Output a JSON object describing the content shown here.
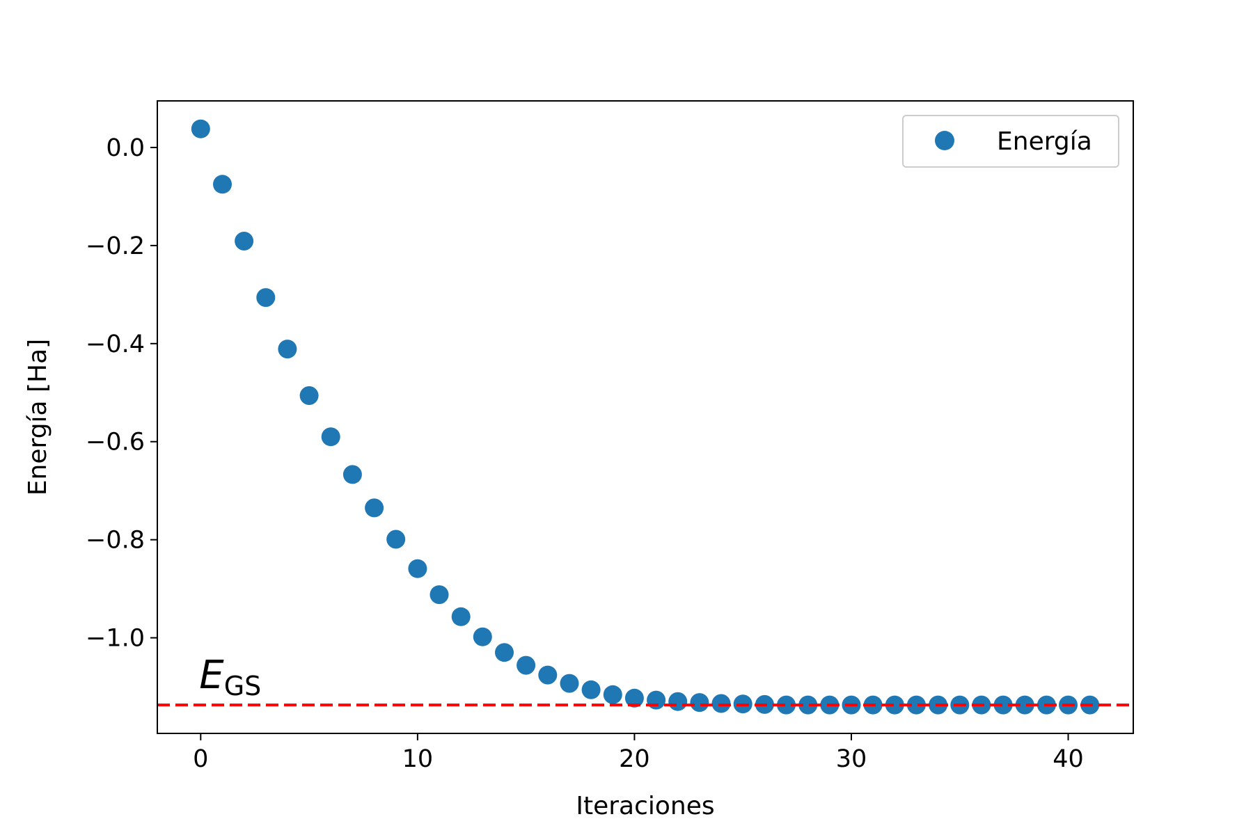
{
  "chart_data": {
    "type": "scatter",
    "xlabel": "Iteraciones",
    "ylabel": "Energía [Ha]",
    "xlim": [
      -2,
      43
    ],
    "ylim": [
      -1.195,
      0.095
    ],
    "xticks": [
      0,
      10,
      20,
      30,
      40
    ],
    "xtick_labels": [
      "0",
      "10",
      "20",
      "30",
      "40"
    ],
    "yticks": [
      0.0,
      -0.2,
      -0.4,
      -0.6,
      -0.8,
      -1.0
    ],
    "ytick_labels": [
      "0.0",
      "−0.2",
      "−0.4",
      "−0.6",
      "−0.8",
      "−1.0"
    ],
    "grid": false,
    "legend_position": "top-right",
    "series": [
      {
        "name": "Energía",
        "color": "#1f77b4",
        "marker": "circle",
        "x": [
          0,
          1,
          2,
          3,
          4,
          5,
          6,
          7,
          8,
          9,
          10,
          11,
          12,
          13,
          14,
          15,
          16,
          17,
          18,
          19,
          20,
          21,
          22,
          23,
          24,
          25,
          26,
          27,
          28,
          29,
          30,
          31,
          32,
          33,
          34,
          35,
          36,
          37,
          38,
          39,
          40,
          41
        ],
        "y": [
          0.038,
          -0.075,
          -0.191,
          -0.306,
          -0.411,
          -0.506,
          -0.59,
          -0.667,
          -0.735,
          -0.799,
          -0.859,
          -0.912,
          -0.957,
          -0.998,
          -1.03,
          -1.056,
          -1.076,
          -1.093,
          -1.106,
          -1.116,
          -1.123,
          -1.127,
          -1.13,
          -1.132,
          -1.134,
          -1.135,
          -1.136,
          -1.137,
          -1.137,
          -1.137,
          -1.137,
          -1.137,
          -1.137,
          -1.137,
          -1.137,
          -1.137,
          -1.137,
          -1.137,
          -1.137,
          -1.137,
          -1.137,
          -1.137
        ]
      }
    ],
    "reference_line": {
      "y": -1.137,
      "color": "#ff0000",
      "style": "dashed",
      "label_main": "E",
      "label_sub": "GS"
    }
  }
}
